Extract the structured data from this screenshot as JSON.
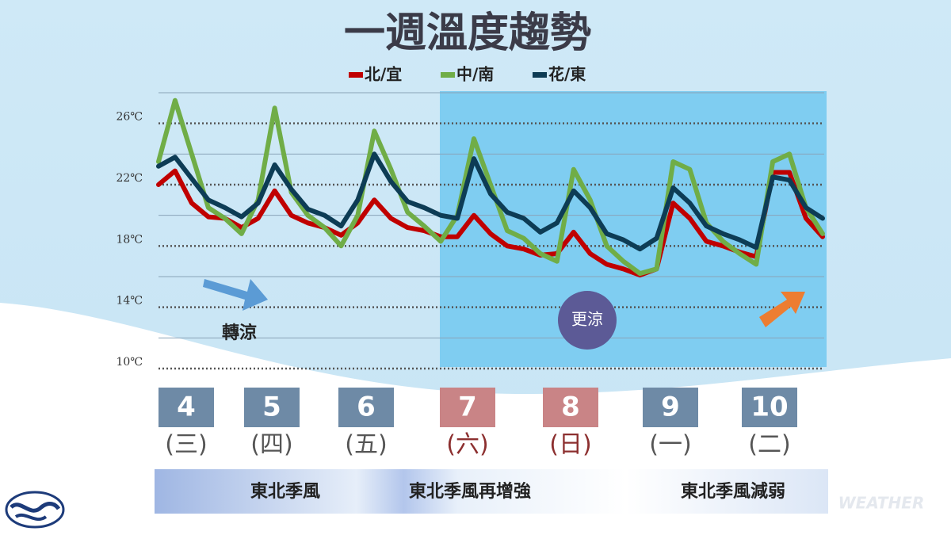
{
  "chart_data": {
    "type": "line",
    "title": "一週溫度趨勢",
    "series": [
      {
        "name": "北/宜",
        "color": "#c00000",
        "values": [
          22,
          22.9,
          20.8,
          19.9,
          19.8,
          19.2,
          19.8,
          21.6,
          20,
          19.5,
          19.2,
          18.7,
          19.5,
          21,
          19.8,
          19.2,
          19,
          18.6,
          18.6,
          20,
          18.8,
          18,
          17.8,
          17.4,
          17.5,
          18.9,
          17.5,
          16.8,
          16.5,
          16.1,
          16.5,
          20.8,
          19.8,
          18.3,
          18,
          17.6,
          17.3,
          22.8,
          22.8,
          19.8,
          18.6
        ]
      },
      {
        "name": "中/南",
        "color": "#70ad47",
        "values": [
          23.5,
          27.5,
          24,
          20.5,
          19.8,
          18.8,
          21,
          27,
          21.5,
          20,
          19.2,
          18,
          20,
          25.5,
          23,
          20.2,
          19.3,
          18.3,
          20,
          25,
          22,
          19,
          18.5,
          17.5,
          17,
          23,
          21,
          18,
          17,
          16.2,
          16.5,
          23.5,
          23,
          19.5,
          18.3,
          17.5,
          16.8,
          23.5,
          24,
          20.5,
          18.8
        ]
      },
      {
        "name": "花/東",
        "color": "#0d3c55",
        "values": [
          23.2,
          23.8,
          22.4,
          21,
          20.5,
          19.9,
          20.8,
          23.3,
          21.7,
          20.4,
          20,
          19.3,
          21,
          24,
          22.2,
          20.9,
          20.5,
          20,
          19.8,
          23.7,
          21.4,
          20.2,
          19.8,
          18.9,
          19.5,
          21.6,
          20.5,
          18.8,
          18.4,
          17.8,
          18.5,
          21.8,
          20.8,
          19.3,
          18.8,
          18.4,
          17.9,
          22.5,
          22.3,
          20.5,
          19.8
        ]
      }
    ],
    "ylim": [
      10,
      28
    ],
    "yticks": [
      {
        "value": 10,
        "label": "10℃"
      },
      {
        "value": 14,
        "label": "14℃"
      },
      {
        "value": 18,
        "label": "18℃"
      },
      {
        "value": 22,
        "label": "22℃"
      },
      {
        "value": 26,
        "label": "26℃"
      }
    ],
    "minor_yticks": [
      12,
      16,
      20,
      24,
      28
    ],
    "grid": true,
    "days": [
      {
        "date": "4",
        "weekday": "(三)",
        "weekend": false
      },
      {
        "date": "5",
        "weekday": "(四)",
        "weekend": false
      },
      {
        "date": "6",
        "weekday": "(五)",
        "weekend": false
      },
      {
        "date": "7",
        "weekday": "(六)",
        "weekend": true
      },
      {
        "date": "8",
        "weekday": "(日)",
        "weekend": true
      },
      {
        "date": "9",
        "weekday": "(一)",
        "weekend": false
      },
      {
        "date": "10",
        "weekday": "(二)",
        "weekend": false
      }
    ],
    "annotations": [
      "轉涼",
      "更涼"
    ],
    "bands": [
      "東北季風",
      "東北季風再增強",
      "東北季風減弱"
    ],
    "watermark": "WEATHER"
  }
}
